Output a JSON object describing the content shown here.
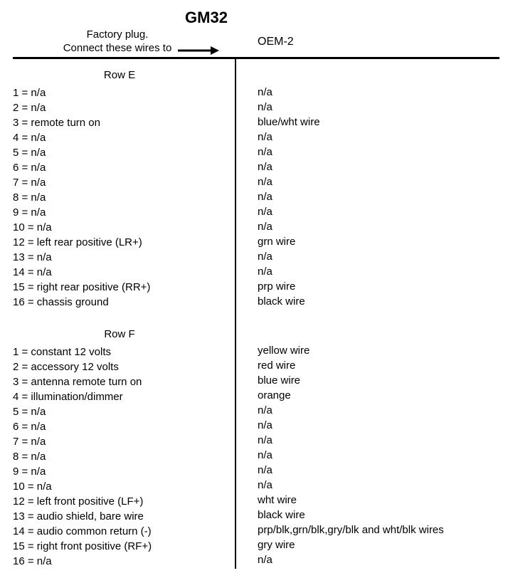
{
  "title": "GM32",
  "subhead_left_line1": "Factory plug.",
  "subhead_left_line2": "Connect these wires to",
  "subhead_right": "OEM-2",
  "sections": [
    {
      "name": "Row E",
      "rows": [
        {
          "pin": "1",
          "left": "n/a",
          "right": "n/a"
        },
        {
          "pin": "2",
          "left": "n/a",
          "right": "n/a"
        },
        {
          "pin": "3",
          "left": "remote turn on",
          "right": "blue/wht wire"
        },
        {
          "pin": "4",
          "left": "n/a",
          "right": "n/a"
        },
        {
          "pin": "5",
          "left": "n/a",
          "right": "n/a"
        },
        {
          "pin": "6",
          "left": "n/a",
          "right": "n/a"
        },
        {
          "pin": "7",
          "left": "n/a",
          "right": "n/a"
        },
        {
          "pin": "8",
          "left": "n/a",
          "right": "n/a"
        },
        {
          "pin": "9",
          "left": "n/a",
          "right": "n/a"
        },
        {
          "pin": "10",
          "left": "n/a",
          "right": "n/a"
        },
        {
          "pin": "12",
          "left": "left rear positive (LR+)",
          "right": "grn wire"
        },
        {
          "pin": "13",
          "left": "n/a",
          "right": "n/a"
        },
        {
          "pin": "14",
          "left": "n/a",
          "right": "n/a"
        },
        {
          "pin": "15",
          "left": "right rear positive (RR+)",
          "right": "prp wire"
        },
        {
          "pin": "16",
          "left": "chassis ground",
          "right": "black wire"
        }
      ]
    },
    {
      "name": "Row F",
      "rows": [
        {
          "pin": "1",
          "left": "constant 12 volts",
          "right": "yellow wire"
        },
        {
          "pin": "2",
          "left": "accessory 12 volts",
          "right": "red wire"
        },
        {
          "pin": "3",
          "left": "antenna remote turn on",
          "right": "blue wire"
        },
        {
          "pin": "4",
          "left": "illumination/dimmer",
          "right": "orange"
        },
        {
          "pin": "5",
          "left": "n/a",
          "right": "n/a"
        },
        {
          "pin": "6",
          "left": "n/a",
          "right": "n/a"
        },
        {
          "pin": "7",
          "left": "n/a",
          "right": "n/a"
        },
        {
          "pin": "8",
          "left": "n/a",
          "right": "n/a"
        },
        {
          "pin": "9",
          "left": "n/a",
          "right": "n/a"
        },
        {
          "pin": "10",
          "left": "n/a",
          "right": "n/a"
        },
        {
          "pin": "12",
          "left": "left front positive (LF+)",
          "right": "wht wire"
        },
        {
          "pin": "13",
          "left": "audio shield, bare wire",
          "right": "black wire"
        },
        {
          "pin": "14",
          "left": "audio common return (-)",
          "right": "prp/blk,grn/blk,gry/blk and wht/blk wires"
        },
        {
          "pin": "15",
          "left": "right front positive (RF+)",
          "right": "gry wire"
        },
        {
          "pin": "16",
          "left": "n/a",
          "right": "n/a"
        }
      ]
    }
  ]
}
